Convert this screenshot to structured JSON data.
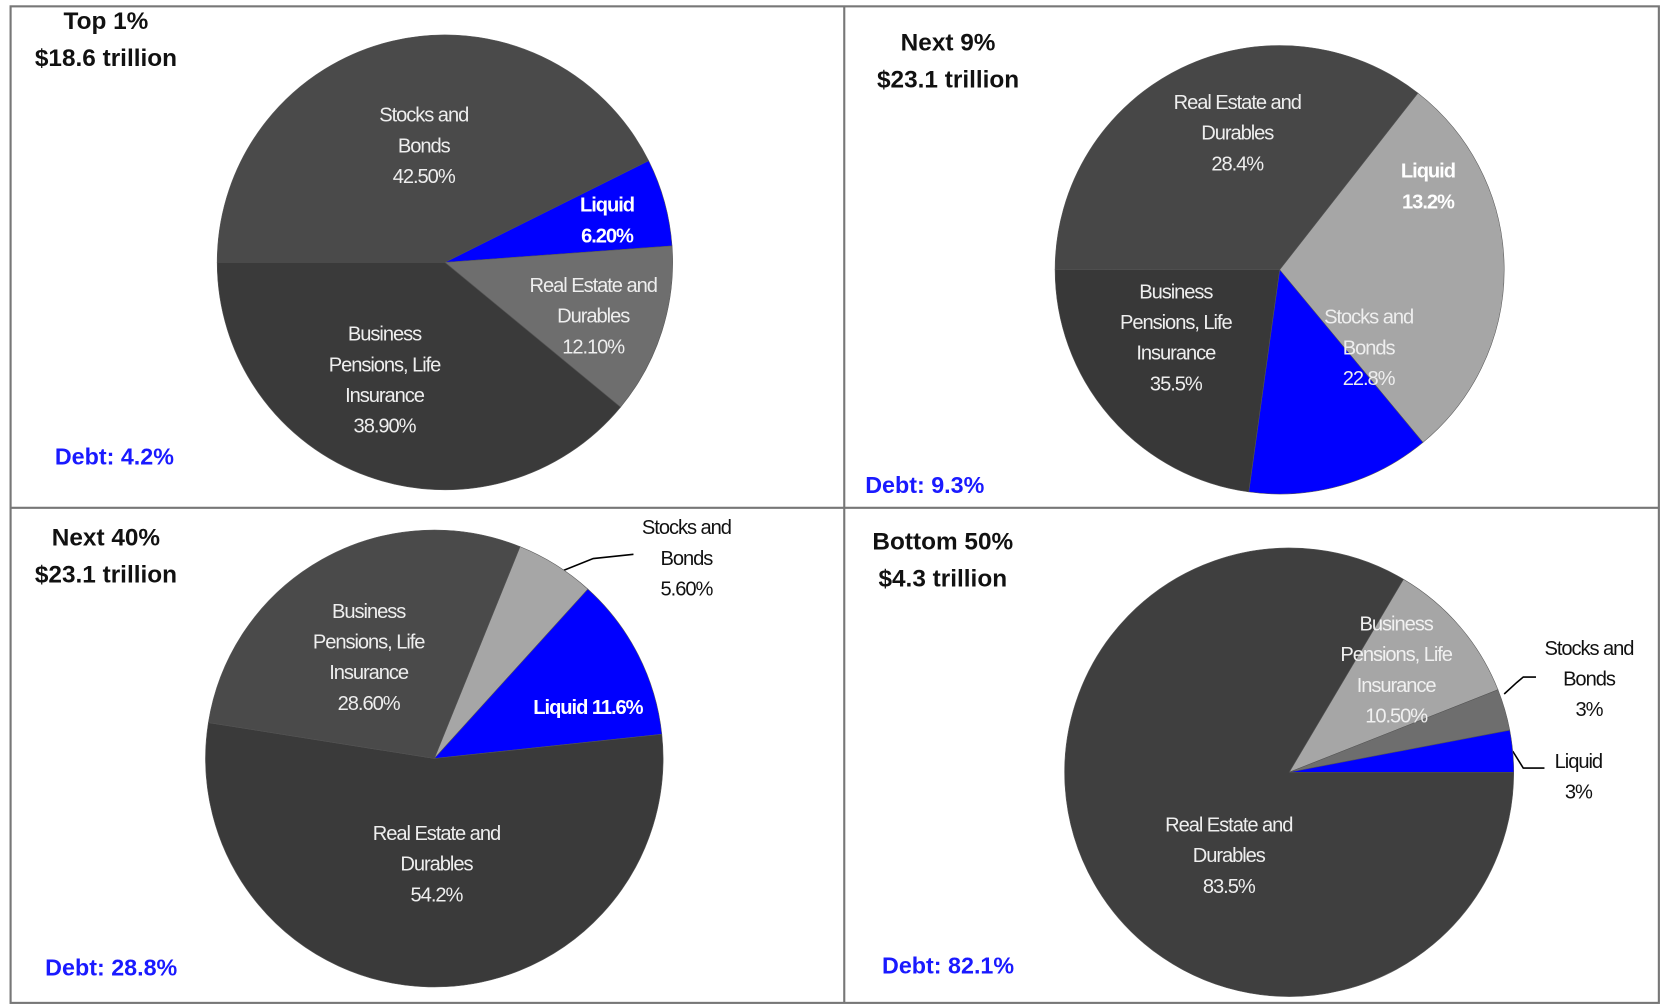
{
  "chart_data": [
    {
      "type": "pie",
      "title": "Top 1%",
      "subtitle": "$18.6 trillion",
      "annotation": "Debt: 4.2%",
      "categories": [
        "Stocks and Bonds",
        "Liquid",
        "Real Estate and Durables",
        "Business Pensions, Life Insurance"
      ],
      "values": [
        42.5,
        6.2,
        12.1,
        38.9
      ],
      "value_labels": [
        "42.50%",
        "6.20%",
        "12.10%",
        "38.90%"
      ],
      "colors": [
        "#4a4a4a",
        "#0000ff",
        "#6e6e6e",
        "#3a3a3a"
      ]
    },
    {
      "type": "pie",
      "title": "Next 9%",
      "subtitle": "$23.1 trillion",
      "annotation": "Debt: 9.3%",
      "categories": [
        "Real Estate and Durables",
        "Liquid",
        "Stocks and Bonds",
        "Business Pensions, Life Insurance"
      ],
      "values": [
        28.4,
        13.2,
        22.8,
        35.5
      ],
      "value_labels": [
        "28.4%",
        "13.2%",
        "22.8%",
        "35.5%"
      ],
      "colors": [
        "#a6a6a6",
        "#0000ff",
        "#383838",
        "#474747"
      ]
    },
    {
      "type": "pie",
      "title": "Next 40%",
      "subtitle": "$23.1 trillion",
      "annotation": "Debt: 28.8%",
      "categories": [
        "Stocks and Bonds",
        "Liquid",
        "Real Estate and Durables",
        "Business Pensions, Life Insurance"
      ],
      "values": [
        5.6,
        11.6,
        54.2,
        28.6
      ],
      "value_labels": [
        "5.60%",
        "11.6%",
        "54.2%",
        "28.60%"
      ],
      "colors": [
        "#a6a6a6",
        "#0000ff",
        "#3a3a3a",
        "#4a4a4a"
      ]
    },
    {
      "type": "pie",
      "title": "Bottom 50%",
      "subtitle": "$4.3 trillion",
      "annotation": "Debt: 82.1%",
      "categories": [
        "Business Pensions, Life Insurance",
        "Stocks and Bonds",
        "Liquid",
        "Real Estate and Durables"
      ],
      "values": [
        10.5,
        3,
        3,
        83.5
      ],
      "value_labels": [
        "10.50%",
        "3%",
        "3%",
        "83.5%"
      ],
      "colors": [
        "#a6a6a6",
        "#6e6e6e",
        "#0000ff",
        "#3f3f3f"
      ]
    }
  ]
}
